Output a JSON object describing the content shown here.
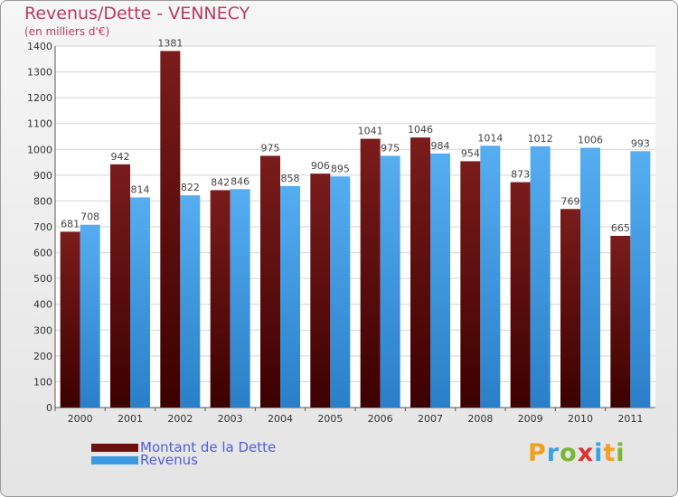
{
  "title": "Revenus/Dette - VENNECY",
  "subtitle": "(en milliers d'€)",
  "legend": {
    "dette_label": "Montant de la Dette",
    "revenus_label": "Revenus"
  },
  "logo": {
    "letters": [
      "P",
      "r",
      "o",
      "x",
      "i",
      "t",
      "i"
    ]
  },
  "colors": {
    "dette": "#6b0f0f",
    "revenus": "#3d9ae0",
    "value_label": "#444444",
    "axis_text": "#333333",
    "logo": [
      "#f0a020",
      "#3aa0e0",
      "#78b830",
      "#e03030",
      "#3aa0e0",
      "#f0a020",
      "#78b830"
    ]
  },
  "chart_data": {
    "type": "bar",
    "title": "Revenus/Dette - VENNECY",
    "ylabel": "(en milliers d'€)",
    "xlabel": "",
    "ylim": [
      0,
      1400
    ],
    "yticks": [
      0,
      100,
      200,
      300,
      400,
      500,
      600,
      700,
      800,
      900,
      1000,
      1100,
      1200,
      1300,
      1400
    ],
    "grid": true,
    "legend_position": "bottom-left",
    "categories": [
      "2000",
      "2001",
      "2002",
      "2003",
      "2004",
      "2005",
      "2006",
      "2007",
      "2008",
      "2009",
      "2010",
      "2011"
    ],
    "series": [
      {
        "name": "Montant de la Dette",
        "values": [
          681,
          942,
          1381,
          842,
          975,
          906,
          1041,
          1046,
          954,
          873,
          769,
          665
        ]
      },
      {
        "name": "Revenus",
        "values": [
          708,
          814,
          822,
          846,
          858,
          895,
          975,
          984,
          1014,
          1012,
          1006,
          993
        ]
      }
    ]
  }
}
